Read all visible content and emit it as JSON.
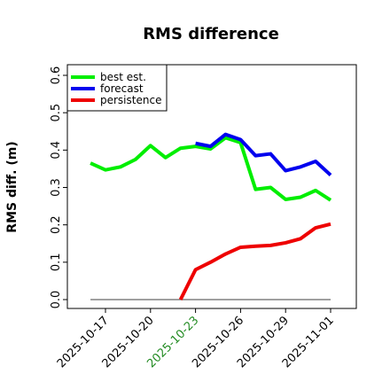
{
  "chart_data": {
    "type": "line",
    "title": "RMS difference",
    "xlabel": "",
    "ylabel": "RMS diff. (m)",
    "ylim": [
      0.0,
      0.6
    ],
    "yticks": [
      "0.0",
      "0.1",
      "0.2",
      "0.3",
      "0.4",
      "0.5",
      "0.6"
    ],
    "xlim": [
      "2025-10-15",
      "2025-11-02"
    ],
    "xticks": [
      {
        "label": "2025-10-17",
        "color": "#000000"
      },
      {
        "label": "2025-10-20",
        "color": "#000000"
      },
      {
        "label": "2025-10-23",
        "color": "#228b22"
      },
      {
        "label": "2025-10-26",
        "color": "#000000"
      },
      {
        "label": "2025-10-29",
        "color": "#000000"
      },
      {
        "label": "2025-11-01",
        "color": "#000000"
      }
    ],
    "grid": false,
    "legend_position": "top-left",
    "series": [
      {
        "name": "best est.",
        "color": "#00ee00",
        "points": [
          [
            "2025-10-16",
            0.365
          ],
          [
            "2025-10-17",
            0.347
          ],
          [
            "2025-10-18",
            0.355
          ],
          [
            "2025-10-19",
            0.375
          ],
          [
            "2025-10-20",
            0.412
          ],
          [
            "2025-10-21",
            0.38
          ],
          [
            "2025-10-22",
            0.405
          ],
          [
            "2025-10-23",
            0.41
          ],
          [
            "2025-10-24",
            0.403
          ],
          [
            "2025-10-25",
            0.433
          ],
          [
            "2025-10-26",
            0.42
          ],
          [
            "2025-10-27",
            0.295
          ],
          [
            "2025-10-28",
            0.3
          ],
          [
            "2025-10-29",
            0.268
          ],
          [
            "2025-10-30",
            0.274
          ],
          [
            "2025-10-31",
            0.292
          ],
          [
            "2025-11-01",
            0.266
          ]
        ]
      },
      {
        "name": "forecast",
        "color": "#0000ee",
        "points": [
          [
            "2025-10-23",
            0.418
          ],
          [
            "2025-10-24",
            0.41
          ],
          [
            "2025-10-25",
            0.442
          ],
          [
            "2025-10-26",
            0.428
          ],
          [
            "2025-10-27",
            0.385
          ],
          [
            "2025-10-28",
            0.39
          ],
          [
            "2025-10-29",
            0.345
          ],
          [
            "2025-10-30",
            0.355
          ],
          [
            "2025-10-31",
            0.37
          ],
          [
            "2025-11-01",
            0.333
          ]
        ]
      },
      {
        "name": "persistence",
        "color": "#ee0000",
        "points": [
          [
            "2025-10-22",
            0.0
          ],
          [
            "2025-10-23",
            0.08
          ],
          [
            "2025-10-24",
            0.1
          ],
          [
            "2025-10-25",
            0.122
          ],
          [
            "2025-10-26",
            0.14
          ],
          [
            "2025-10-27",
            0.143
          ],
          [
            "2025-10-28",
            0.145
          ],
          [
            "2025-10-29",
            0.152
          ],
          [
            "2025-10-30",
            0.163
          ],
          [
            "2025-10-31",
            0.192
          ],
          [
            "2025-11-01",
            0.202
          ]
        ]
      }
    ],
    "reference_line": {
      "color": "#808080",
      "points": [
        [
          "2025-10-16",
          0.0
        ],
        [
          "2025-11-01",
          0.0
        ]
      ]
    }
  }
}
